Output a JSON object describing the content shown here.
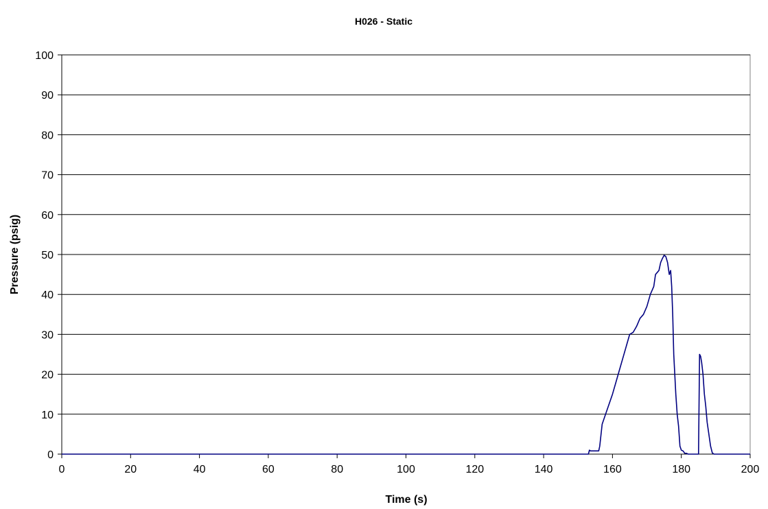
{
  "chart_data": {
    "type": "line",
    "title": "H026 - Static",
    "xlabel": "Time (s)",
    "ylabel": "Pressure (psig)",
    "xlim": [
      0,
      200
    ],
    "ylim": [
      0,
      100
    ],
    "xticks": [
      0,
      20,
      40,
      60,
      80,
      100,
      120,
      140,
      160,
      180,
      200
    ],
    "yticks": [
      0,
      10,
      20,
      30,
      40,
      50,
      60,
      70,
      80,
      90,
      100
    ],
    "grid": "horizontal",
    "legend": "none",
    "line_color": "#000080",
    "series": [
      {
        "x": [
          0,
          153.0,
          153.3,
          153.6,
          156.0,
          156.3,
          157.0,
          158.0,
          159.0,
          160.0,
          161.0,
          162.0,
          163.0,
          164.0,
          165.0,
          166.0,
          167.0,
          167.5,
          168.0,
          169.0,
          170.0,
          171.0,
          172.0,
          172.5,
          173.0,
          173.5,
          174.0,
          174.5,
          175.0,
          175.5,
          176.0,
          176.5,
          176.9,
          177.2,
          177.5,
          177.8,
          178.1,
          178.4,
          178.8,
          179.2,
          179.6,
          180.0,
          180.5,
          181.0,
          181.5,
          182.0,
          182.5,
          183.0,
          184.0,
          185.0,
          185.3,
          185.6,
          185.9,
          186.3,
          186.7,
          187.1,
          187.5,
          188.0,
          188.5,
          189.0,
          189.5,
          190.0,
          190.5,
          191.0,
          200.0
        ],
        "y": [
          0,
          0,
          1.0,
          0.8,
          0.8,
          2.0,
          7.5,
          10.0,
          12.5,
          15.0,
          18.0,
          21.0,
          24.0,
          27.0,
          30.0,
          30.5,
          32.0,
          33.0,
          34.0,
          35.0,
          37.0,
          40.0,
          42.0,
          45.0,
          45.5,
          46.0,
          48.0,
          49.0,
          49.8,
          49.5,
          48.0,
          45.0,
          46.0,
          42.0,
          35.0,
          25.0,
          20.0,
          15.0,
          10.0,
          7.0,
          2.0,
          1.0,
          0.8,
          0.2,
          0.2,
          0,
          0,
          0,
          0,
          0,
          25.0,
          24.5,
          23.0,
          20.0,
          15.0,
          12.0,
          8.0,
          5.0,
          2.0,
          0.3,
          0,
          0,
          0,
          0,
          0
        ]
      }
    ]
  }
}
